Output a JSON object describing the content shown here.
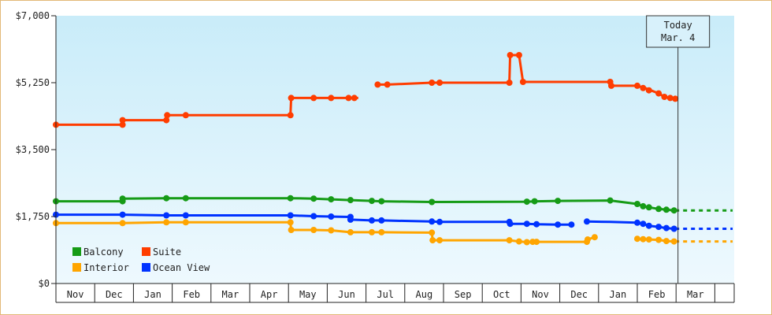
{
  "chart_data": {
    "type": "line",
    "title": "",
    "xlabel": "",
    "ylabel": "",
    "yticks": [
      "$0",
      "$1,750",
      "$3,500",
      "$5,250",
      "$7,000"
    ],
    "ylim": [
      0,
      7000
    ],
    "xlim": [
      0,
      16.9
    ],
    "months": [
      "Nov",
      "Dec",
      "Jan",
      "Feb",
      "Mar",
      "Apr",
      "May",
      "Jun",
      "Jul",
      "Aug",
      "Sep",
      "Oct",
      "Nov",
      "Dec",
      "Jan",
      "Feb",
      "Mar"
    ],
    "grid": false,
    "today": {
      "line1": "Today",
      "line2": "Mar. 4",
      "x": 16.05
    },
    "legend": {
      "position": "bottom-left",
      "entries": [
        {
          "label": "Balcony",
          "color": "#169b16"
        },
        {
          "label": "Suite",
          "color": "#ff3d00"
        },
        {
          "label": "Interior",
          "color": "#ffa500"
        },
        {
          "label": "Ocean View",
          "color": "#0033ff"
        }
      ]
    },
    "series": [
      {
        "name": "Suite",
        "color": "#ff3d00",
        "segments": [
          [
            [
              0.0,
              4150
            ],
            [
              1.7,
              4150
            ],
            [
              1.72,
              4270
            ],
            [
              2.85,
              4270
            ],
            [
              2.87,
              4400
            ],
            [
              3.35,
              4400
            ],
            [
              6.05,
              4400
            ],
            [
              6.07,
              4850
            ],
            [
              6.65,
              4850
            ],
            [
              7.1,
              4850
            ],
            [
              7.6,
              4850
            ],
            [
              7.8,
              4850
            ]
          ],
          [
            [
              8.3,
              5200
            ],
            [
              8.55,
              5200
            ],
            [
              9.7,
              5250
            ],
            [
              9.9,
              5250
            ],
            [
              11.7,
              5250
            ],
            [
              11.72,
              5970
            ],
            [
              11.95,
              5970
            ],
            [
              12.05,
              5270
            ],
            [
              14.3,
              5270
            ],
            [
              14.33,
              5170
            ],
            [
              15.0,
              5170
            ],
            [
              15.2,
              5110
            ],
            [
              15.35,
              5050
            ],
            [
              15.55,
              4970
            ],
            [
              15.7,
              4880
            ],
            [
              15.85,
              4850
            ],
            [
              15.98,
              4830
            ]
          ]
        ],
        "markers": [
          [
            0.0,
            4150
          ],
          [
            1.72,
            4150
          ],
          [
            1.72,
            4270
          ],
          [
            2.85,
            4270
          ],
          [
            2.87,
            4400
          ],
          [
            3.35,
            4400
          ],
          [
            6.05,
            4400
          ],
          [
            6.07,
            4850
          ],
          [
            6.65,
            4850
          ],
          [
            7.1,
            4850
          ],
          [
            7.55,
            4850
          ],
          [
            7.7,
            4850
          ],
          [
            8.3,
            5200
          ],
          [
            8.55,
            5200
          ],
          [
            9.7,
            5250
          ],
          [
            9.9,
            5250
          ],
          [
            11.7,
            5250
          ],
          [
            11.72,
            5970
          ],
          [
            11.95,
            5970
          ],
          [
            12.05,
            5270
          ],
          [
            14.3,
            5270
          ],
          [
            14.33,
            5170
          ],
          [
            15.0,
            5170
          ],
          [
            15.15,
            5110
          ],
          [
            15.3,
            5050
          ],
          [
            15.55,
            4970
          ],
          [
            15.7,
            4880
          ],
          [
            15.85,
            4850
          ],
          [
            15.98,
            4830
          ]
        ]
      },
      {
        "name": "Balcony",
        "color": "#169b16",
        "segments": [
          [
            [
              0.0,
              2150
            ],
            [
              1.72,
              2150
            ],
            [
              1.74,
              2220
            ],
            [
              2.85,
              2230
            ],
            [
              3.35,
              2230
            ],
            [
              6.05,
              2230
            ],
            [
              6.65,
              2220
            ],
            [
              7.1,
              2200
            ],
            [
              7.6,
              2180
            ],
            [
              8.15,
              2160
            ],
            [
              8.4,
              2150
            ],
            [
              9.7,
              2130
            ],
            [
              12.15,
              2140
            ],
            [
              12.4,
              2150
            ],
            [
              13.0,
              2160
            ],
            [
              14.3,
              2170
            ],
            [
              15.0,
              2080
            ],
            [
              15.15,
              2020
            ],
            [
              15.3,
              1990
            ],
            [
              15.55,
              1950
            ],
            [
              15.75,
              1930
            ],
            [
              15.95,
              1910
            ]
          ]
        ],
        "markers": [
          [
            0.0,
            2150
          ],
          [
            1.72,
            2150
          ],
          [
            1.72,
            2220
          ],
          [
            2.85,
            2230
          ],
          [
            3.35,
            2230
          ],
          [
            6.05,
            2230
          ],
          [
            6.65,
            2220
          ],
          [
            7.1,
            2200
          ],
          [
            7.6,
            2180
          ],
          [
            8.15,
            2160
          ],
          [
            8.4,
            2150
          ],
          [
            9.7,
            2130
          ],
          [
            12.15,
            2140
          ],
          [
            12.35,
            2150
          ],
          [
            12.95,
            2160
          ],
          [
            14.3,
            2170
          ],
          [
            15.0,
            2080
          ],
          [
            15.15,
            2020
          ],
          [
            15.3,
            1990
          ],
          [
            15.55,
            1950
          ],
          [
            15.75,
            1930
          ],
          [
            15.95,
            1910
          ]
        ],
        "projection": [
          [
            15.98,
            1910
          ],
          [
            17.5,
            1910
          ]
        ]
      },
      {
        "name": "Ocean View",
        "color": "#0033ff",
        "segments": [
          [
            [
              0.0,
              1800
            ],
            [
              1.72,
              1800
            ],
            [
              2.85,
              1780
            ],
            [
              3.35,
              1780
            ],
            [
              6.05,
              1780
            ],
            [
              6.65,
              1760
            ],
            [
              7.1,
              1750
            ],
            [
              7.6,
              1740
            ],
            [
              7.6,
              1670
            ],
            [
              8.15,
              1650
            ],
            [
              8.4,
              1650
            ],
            [
              9.7,
              1620
            ],
            [
              9.9,
              1610
            ],
            [
              11.7,
              1610
            ],
            [
              11.72,
              1560
            ],
            [
              12.15,
              1560
            ],
            [
              12.4,
              1550
            ],
            [
              12.95,
              1540
            ],
            [
              13.3,
              1540
            ]
          ],
          [
            [
              13.7,
              1620
            ],
            [
              14.3,
              1610
            ],
            [
              15.0,
              1590
            ],
            [
              15.15,
              1560
            ],
            [
              15.3,
              1510
            ],
            [
              15.55,
              1480
            ],
            [
              15.75,
              1450
            ],
            [
              15.95,
              1430
            ]
          ]
        ],
        "markers": [
          [
            0.0,
            1800
          ],
          [
            1.72,
            1800
          ],
          [
            2.85,
            1780
          ],
          [
            3.35,
            1780
          ],
          [
            6.05,
            1780
          ],
          [
            6.65,
            1760
          ],
          [
            7.1,
            1750
          ],
          [
            7.6,
            1740
          ],
          [
            7.6,
            1670
          ],
          [
            8.15,
            1650
          ],
          [
            8.4,
            1650
          ],
          [
            9.7,
            1620
          ],
          [
            9.9,
            1610
          ],
          [
            11.7,
            1610
          ],
          [
            11.72,
            1560
          ],
          [
            12.15,
            1560
          ],
          [
            12.4,
            1550
          ],
          [
            12.95,
            1540
          ],
          [
            13.3,
            1540
          ],
          [
            13.7,
            1620
          ],
          [
            15.0,
            1590
          ],
          [
            15.15,
            1560
          ],
          [
            15.3,
            1510
          ],
          [
            15.55,
            1480
          ],
          [
            15.75,
            1450
          ],
          [
            15.95,
            1430
          ]
        ],
        "projection": [
          [
            15.98,
            1430
          ],
          [
            17.5,
            1430
          ]
        ]
      },
      {
        "name": "Interior",
        "color": "#ffa500",
        "segments": [
          [
            [
              0.0,
              1580
            ],
            [
              1.72,
              1580
            ],
            [
              2.85,
              1600
            ],
            [
              3.35,
              1600
            ],
            [
              6.05,
              1600
            ],
            [
              6.07,
              1400
            ],
            [
              6.65,
              1400
            ],
            [
              7.1,
              1390
            ],
            [
              7.6,
              1340
            ],
            [
              8.15,
              1340
            ],
            [
              8.4,
              1340
            ],
            [
              9.7,
              1330
            ],
            [
              9.72,
              1130
            ],
            [
              9.9,
              1130
            ],
            [
              11.7,
              1130
            ],
            [
              11.95,
              1100
            ],
            [
              12.15,
              1080
            ],
            [
              12.3,
              1090
            ],
            [
              12.4,
              1090
            ],
            [
              13.7,
              1090
            ],
            [
              13.72,
              1150
            ],
            [
              13.9,
              1210
            ]
          ],
          [
            [
              15.0,
              1170
            ],
            [
              15.15,
              1160
            ],
            [
              15.3,
              1150
            ],
            [
              15.55,
              1140
            ],
            [
              15.75,
              1110
            ],
            [
              15.95,
              1100
            ]
          ]
        ],
        "markers": [
          [
            0.0,
            1580
          ],
          [
            1.72,
            1580
          ],
          [
            2.85,
            1600
          ],
          [
            3.35,
            1600
          ],
          [
            6.05,
            1600
          ],
          [
            6.07,
            1400
          ],
          [
            6.65,
            1400
          ],
          [
            7.1,
            1390
          ],
          [
            7.6,
            1340
          ],
          [
            8.15,
            1340
          ],
          [
            8.4,
            1340
          ],
          [
            9.7,
            1330
          ],
          [
            9.72,
            1130
          ],
          [
            9.9,
            1130
          ],
          [
            11.7,
            1130
          ],
          [
            11.95,
            1100
          ],
          [
            12.15,
            1080
          ],
          [
            12.3,
            1090
          ],
          [
            12.4,
            1090
          ],
          [
            13.7,
            1090
          ],
          [
            13.72,
            1150
          ],
          [
            13.9,
            1210
          ],
          [
            15.0,
            1170
          ],
          [
            15.15,
            1160
          ],
          [
            15.3,
            1150
          ],
          [
            15.55,
            1140
          ],
          [
            15.75,
            1110
          ],
          [
            15.95,
            1100
          ]
        ],
        "projection": [
          [
            15.98,
            1100
          ],
          [
            17.5,
            1100
          ]
        ]
      }
    ]
  }
}
